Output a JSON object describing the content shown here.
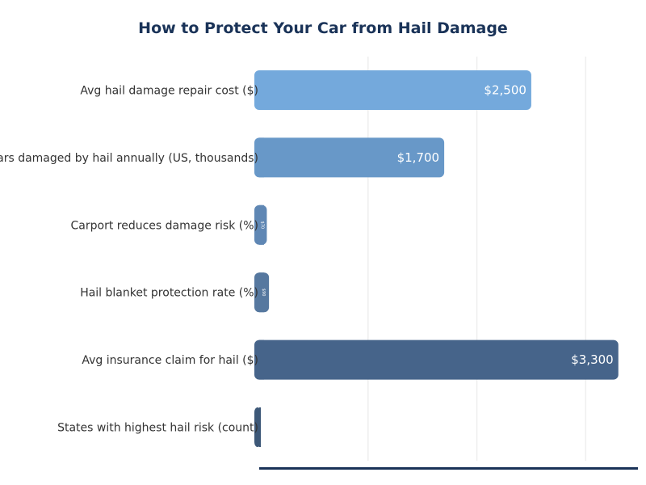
{
  "chart_data": {
    "type": "bar",
    "orientation": "horizontal",
    "title": "How to Protect Your Car from Hail Damage",
    "categories": [
      "Avg hail damage repair cost ($)",
      "Cars damaged by hail annually (US, thousands)",
      "Carport reduces damage risk (%)",
      "Hail blanket protection rate (%)",
      "Avg insurance claim for hail ($)",
      "States with highest hail risk (count)"
    ],
    "values": [
      2500,
      1700,
      70,
      90,
      3300,
      10
    ],
    "data_labels": [
      "$2,500",
      "$1,700",
      "$70",
      "$90",
      "$3,300",
      ""
    ],
    "colors": [
      "#74a9dc",
      "#6898c8",
      "#5f87b4",
      "#56789f",
      "#46648a",
      "#3d5878"
    ],
    "xlim": [
      0,
      3480
    ],
    "gridlines": [
      1000,
      2000,
      3000
    ],
    "grid": true,
    "axis_color": "#1a3358"
  }
}
